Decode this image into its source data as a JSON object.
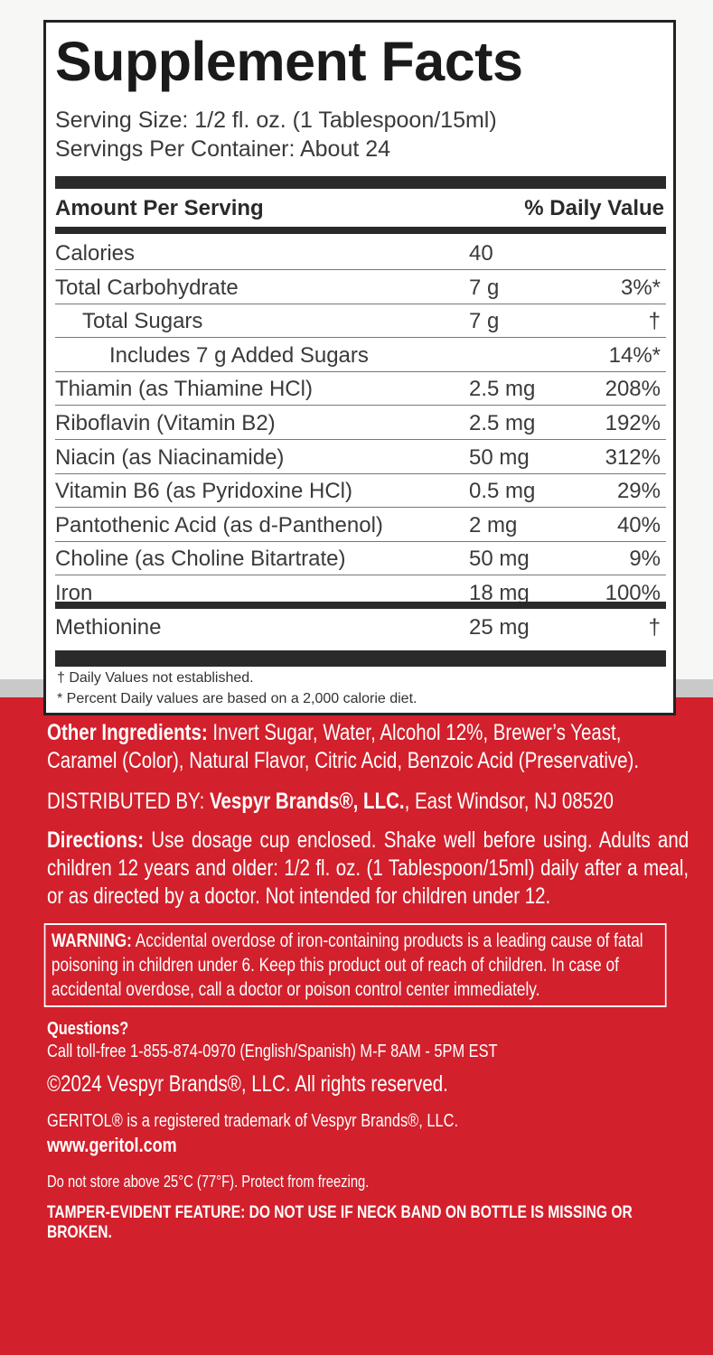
{
  "facts": {
    "title": "Supplement Facts",
    "serving_size": "Serving Size: 1/2 fl. oz. (1 Tablespoon/15ml)",
    "servings_per_container": "Servings Per Container: About 24",
    "header": {
      "amount": "Amount Per Serving",
      "dv": "% Daily Value"
    },
    "rows": [
      {
        "name": "Calories",
        "amount": "40"
      },
      {
        "name": "Total Carbohydrate",
        "amount": "7 g",
        "dv": "3%*"
      },
      {
        "name": "Total Sugars",
        "amount": "7 g",
        "dv": "†"
      },
      {
        "name": "Includes 7 g Added Sugars",
        "dv": "14%*"
      },
      {
        "name": "Thiamin (as Thiamine HCl)",
        "amount": "2.5 mg",
        "dv": "208%"
      },
      {
        "name": "Riboflavin (Vitamin B2)",
        "amount": "2.5 mg",
        "dv": "192%"
      },
      {
        "name": "Niacin (as Niacinamide)",
        "amount": "50 mg",
        "dv": "312%"
      },
      {
        "name": "Vitamin B6 (as Pyridoxine HCl)",
        "amount": "0.5 mg",
        "dv": "29%"
      },
      {
        "name": "Pantothenic Acid (as d-Panthenol)",
        "amount": "2 mg",
        "dv": "40%"
      },
      {
        "name": "Choline (as Choline Bitartrate)",
        "amount": "50 mg",
        "dv": "9%"
      },
      {
        "name": "Iron",
        "amount": "18 mg",
        "dv": "100%"
      },
      {
        "name": "Methionine",
        "amount": "25 mg",
        "dv": "†"
      }
    ],
    "footnotes": [
      "† Daily Values not established.",
      "* Percent Daily values are based on a 2,000 calorie diet."
    ]
  },
  "other_ingredients": {
    "label": "Other Ingredients:",
    "text": "Invert Sugar, Water, Alcohol 12%, Brewer’s Yeast, Caramel (Color), Natural Flavor, Citric Acid, Benzoic Acid (Preservative)."
  },
  "distributor": {
    "label": "DISTRIBUTED BY:",
    "name": "Vespyr Brands®, LLC.",
    "address": ", East Windsor, NJ 08520"
  },
  "directions": {
    "label": "Directions:",
    "text": "Use dosage cup enclosed. Shake well before using. Adults and children 12 years and older: 1/2 fl. oz. (1 Tablespoon/15ml) daily after a meal, or as directed by a doctor. Not intended for children under 12."
  },
  "warning": {
    "label": "WARNING:",
    "text": "Accidental overdose of iron-containing products is a leading cause of fatal poisoning in children under 6. Keep this product out of reach of children. In case of accidental overdose, call a doctor or poison control center immediately."
  },
  "questions": {
    "label": "Questions?",
    "text": "Call toll-free 1-855-874-0970 (English/Spanish) M-F 8AM - 5PM EST"
  },
  "copyright": "©2024 Vespyr Brands®, LLC. All rights reserved.",
  "trademark": "GERITOL® is a registered trademark of Vespyr Brands®, LLC.",
  "website": "www.geritol.com",
  "storage": "Do not store above 25°C (77°F). Protect from freezing.",
  "tamper": "TAMPER-EVIDENT FEATURE: DO NOT USE IF NECK BAND ON BOTTLE IS MISSING OR BROKEN."
}
